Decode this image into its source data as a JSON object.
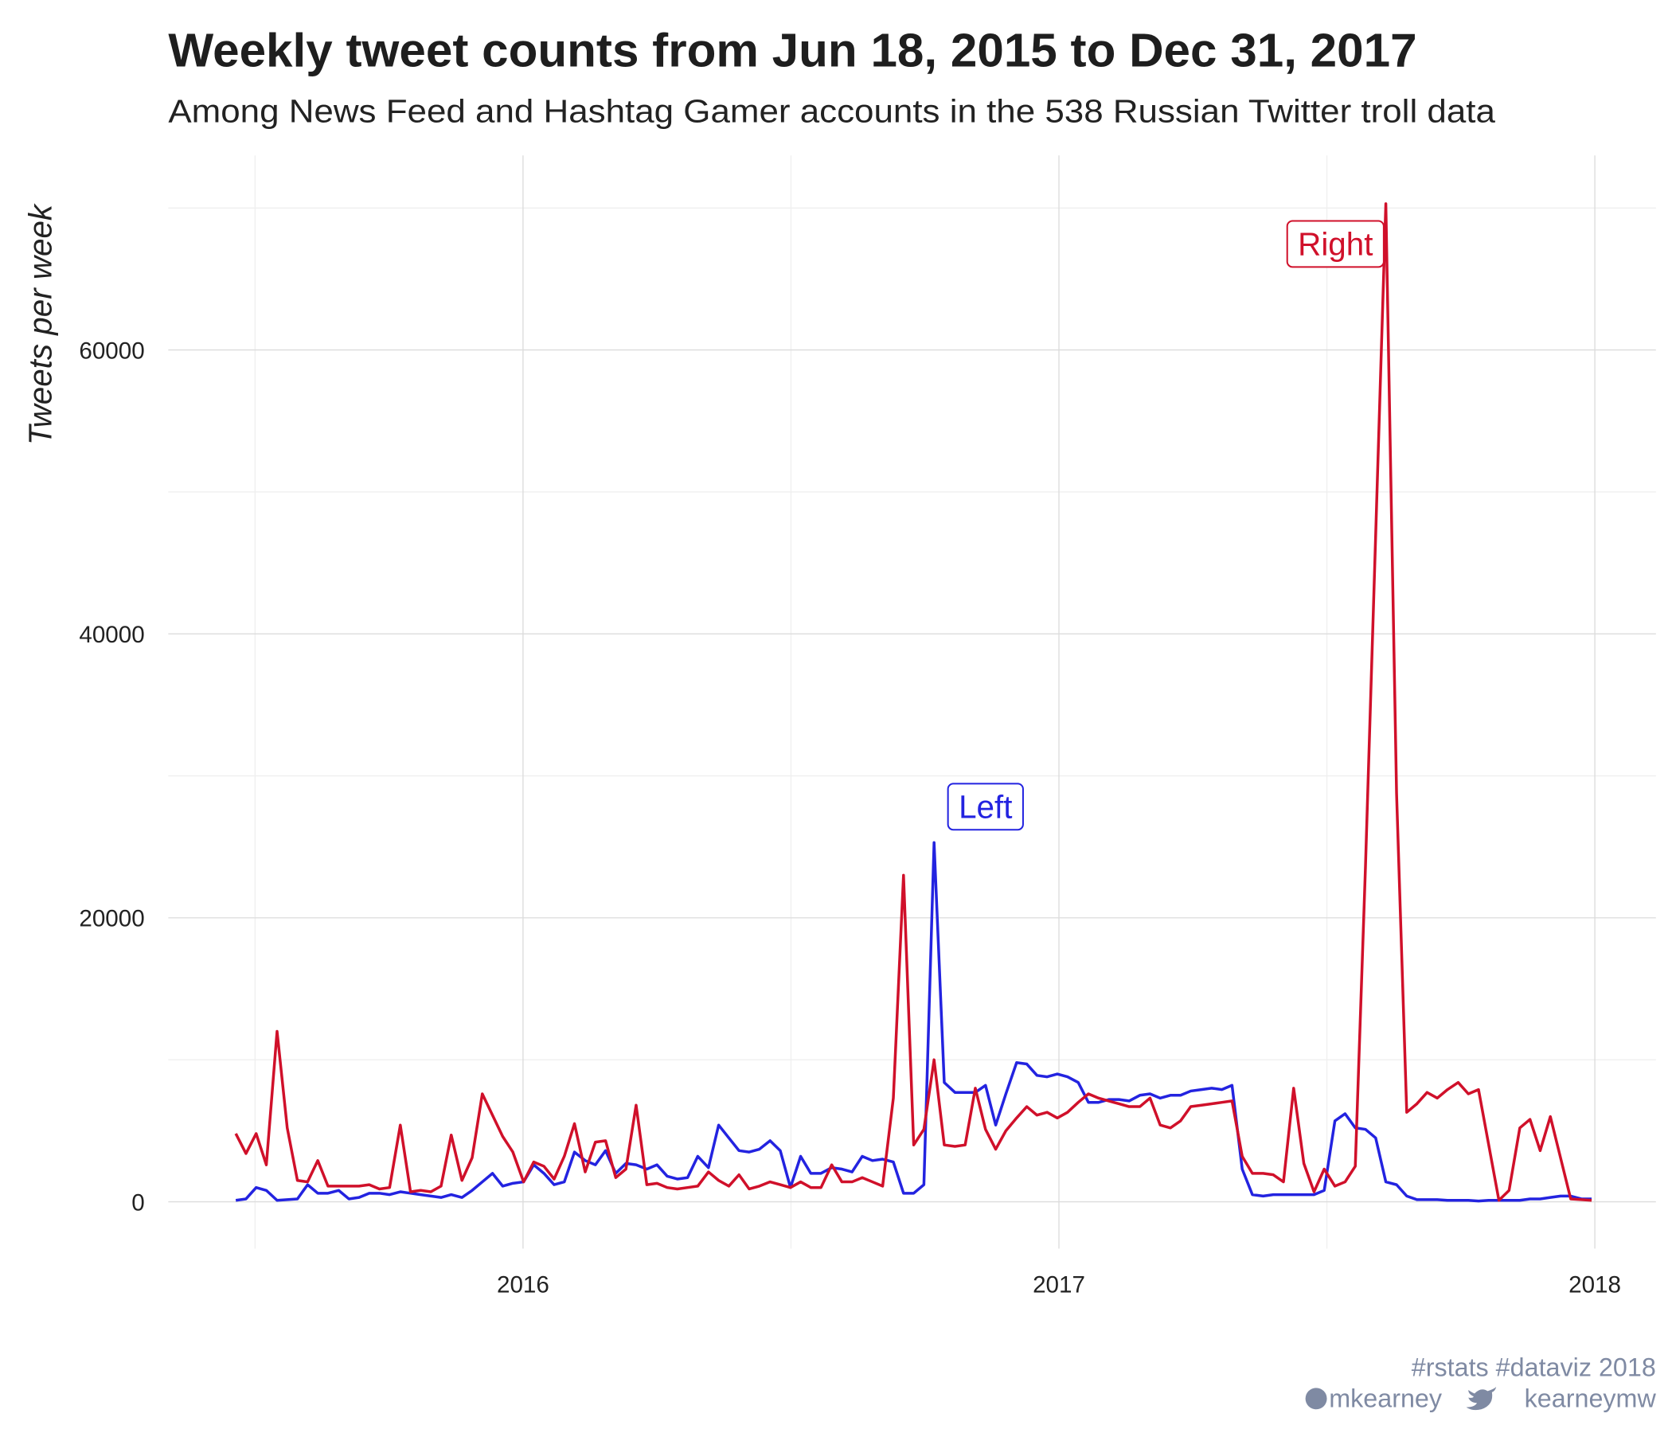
{
  "chart_data": {
    "type": "line",
    "title": "Weekly tweet counts from Jun 18, 2015 to Dec 31, 2017",
    "subtitle": "Among News Feed and Hashtag Gamer accounts in the 538 Russian Twitter troll data",
    "y_label": "Tweets per week",
    "caption": [
      "#rstats #dataviz 2018",
      "mkearney",
      "kearneymw"
    ],
    "xlim": [
      2015.338,
      2018.114
    ],
    "xticks": [
      2016,
      2017,
      2018
    ],
    "minor_xticks": [
      2015.5,
      2016.5,
      2017.5
    ],
    "ylim": [
      -3300,
      73700
    ],
    "yticks": [
      0,
      20000,
      40000,
      60000
    ],
    "minor_yticks": [
      10000,
      30000,
      50000,
      70000
    ],
    "grid": true,
    "x": [
      2015.464,
      2015.483,
      2015.502,
      2015.521,
      2015.541,
      2015.56,
      2015.579,
      2015.598,
      2015.617,
      2015.636,
      2015.656,
      2015.675,
      2015.694,
      2015.713,
      2015.732,
      2015.751,
      2015.771,
      2015.79,
      2015.809,
      2015.828,
      2015.847,
      2015.866,
      2015.886,
      2015.905,
      2015.924,
      2015.943,
      2015.962,
      2015.981,
      2016.001,
      2016.02,
      2016.039,
      2016.058,
      2016.077,
      2016.096,
      2016.116,
      2016.135,
      2016.154,
      2016.173,
      2016.192,
      2016.211,
      2016.231,
      2016.25,
      2016.269,
      2016.288,
      2016.307,
      2016.326,
      2016.346,
      2016.365,
      2016.384,
      2016.403,
      2016.422,
      2016.441,
      2016.461,
      2016.48,
      2016.499,
      2016.518,
      2016.537,
      2016.556,
      2016.576,
      2016.595,
      2016.614,
      2016.633,
      2016.652,
      2016.671,
      2016.691,
      2016.71,
      2016.729,
      2016.748,
      2016.767,
      2016.786,
      2016.806,
      2016.825,
      2016.844,
      2016.863,
      2016.882,
      2016.901,
      2016.921,
      2016.94,
      2016.959,
      2016.978,
      2016.997,
      2017.016,
      2017.036,
      2017.055,
      2017.074,
      2017.093,
      2017.112,
      2017.131,
      2017.151,
      2017.17,
      2017.189,
      2017.208,
      2017.227,
      2017.246,
      2017.266,
      2017.285,
      2017.304,
      2017.323,
      2017.342,
      2017.361,
      2017.381,
      2017.4,
      2017.419,
      2017.438,
      2017.457,
      2017.476,
      2017.495,
      2017.515,
      2017.534,
      2017.553,
      2017.572,
      2017.591,
      2017.61,
      2017.63,
      2017.649,
      2017.668,
      2017.687,
      2017.706,
      2017.725,
      2017.745,
      2017.764,
      2017.783,
      2017.802,
      2017.821,
      2017.84,
      2017.86,
      2017.879,
      2017.898,
      2017.917,
      2017.936,
      2017.955,
      2017.975,
      2017.994
    ],
    "series": [
      {
        "name": "Left",
        "color": "#2323e0",
        "values": [
          100,
          200,
          1000,
          800,
          100,
          150,
          200,
          1200,
          600,
          600,
          800,
          200,
          300,
          600,
          600,
          500,
          700,
          600,
          500,
          400,
          300,
          500,
          300,
          800,
          1400,
          2000,
          1100,
          1300,
          1400,
          2600,
          2000,
          1200,
          1400,
          3500,
          2900,
          2600,
          3600,
          2000,
          2700,
          2600,
          2300,
          2600,
          1800,
          1600,
          1700,
          3200,
          2400,
          5400,
          4500,
          3600,
          3500,
          3700,
          4300,
          3600,
          1000,
          3200,
          2000,
          2000,
          2400,
          2300,
          2100,
          3200,
          2900,
          3000,
          2800,
          600,
          600,
          1200,
          25300,
          8400,
          7700,
          7700,
          7700,
          8200,
          5400,
          7600,
          9800,
          9700,
          8900,
          8800,
          9000,
          8800,
          8400,
          7000,
          7000,
          7200,
          7200,
          7100,
          7500,
          7600,
          7300,
          7500,
          7500,
          7800,
          7900,
          8000,
          7900,
          8200,
          2300,
          500,
          400,
          500,
          500,
          500,
          500,
          500,
          800,
          5700,
          6200,
          5200,
          5100,
          4500,
          1400,
          1200,
          400,
          150,
          150,
          150,
          100,
          100,
          100,
          50,
          100,
          100,
          100,
          100,
          200,
          200,
          300,
          400,
          400,
          200,
          200
        ]
      },
      {
        "name": "Right",
        "color": "#d0102a",
        "values": [
          4800,
          3400,
          4800,
          2600,
          12000,
          5200,
          1500,
          1400,
          2900,
          1100,
          1100,
          1100,
          1100,
          1200,
          900,
          1000,
          5400,
          700,
          800,
          700,
          1100,
          4700,
          1500,
          3100,
          7600,
          6100,
          4600,
          3500,
          1400,
          2800,
          2500,
          1600,
          3200,
          5500,
          2100,
          4200,
          4300,
          1700,
          2300,
          6800,
          1200,
          1300,
          1000,
          900,
          1000,
          1100,
          2100,
          1500,
          1100,
          1900,
          900,
          1100,
          1400,
          1200,
          1000,
          1400,
          1000,
          1000,
          2600,
          1400,
          1400,
          1700,
          1400,
          1100,
          7300,
          23000,
          4000,
          5100,
          10000,
          4000,
          3900,
          4000,
          8000,
          5100,
          3700,
          5000,
          5900,
          6700,
          6100,
          6300,
          5900,
          6300,
          7000,
          7600,
          7300,
          7100,
          6900,
          6700,
          6700,
          7300,
          5400,
          5200,
          5700,
          6700,
          6800,
          6900,
          7000,
          7100,
          3200,
          2000,
          2000,
          1900,
          1400,
          8000,
          2700,
          700,
          2300,
          1100,
          1400,
          2500,
          23600,
          46900,
          70300,
          28800,
          6300,
          6900,
          7700,
          7300,
          7900,
          8400,
          7600,
          7900,
          4000,
          100,
          800,
          5200,
          5800,
          3600,
          6000,
          3100,
          200,
          150,
          100
        ]
      }
    ]
  }
}
